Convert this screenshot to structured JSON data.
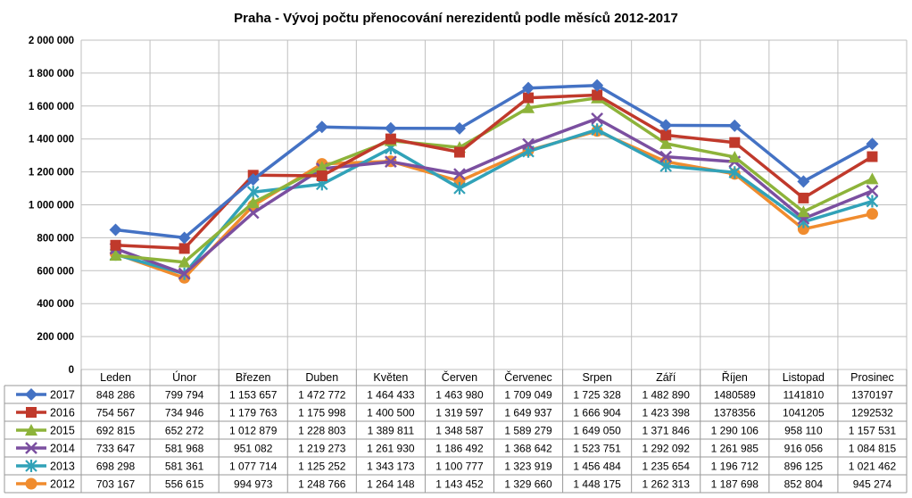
{
  "chart_data": {
    "type": "line",
    "title": "Praha - Vývoj počtu přenocování nerezidentů podle měsíců 2012-2017",
    "ylim": [
      0,
      2000000
    ],
    "yticks": [
      0,
      200000,
      400000,
      600000,
      800000,
      1000000,
      1200000,
      1400000,
      1600000,
      1800000,
      2000000
    ],
    "ytick_labels": [
      "0",
      "200 000",
      "400 000",
      "600 000",
      "800 000",
      "1 000 000",
      "1 200 000",
      "1 400 000",
      "1 600 000",
      "1 800 000",
      "2 000 000"
    ],
    "grid": true,
    "legend": "data-table-left",
    "categories": [
      "Leden",
      "Únor",
      "Březen",
      "Duben",
      "Květen",
      "Červen",
      "Červenec",
      "Srpen",
      "Září",
      "Říjen",
      "Listopad",
      "Prosinec"
    ],
    "series": [
      {
        "name": "2017",
        "color": "#4472C4",
        "marker": "diamond",
        "values": [
          848286,
          799794,
          1153657,
          1472772,
          1464433,
          1463980,
          1709049,
          1725328,
          1482890,
          1480589,
          1141810,
          1370197
        ],
        "labels": [
          "848 286",
          "799 794",
          "1 153 657",
          "1 472 772",
          "1 464 433",
          "1 463 980",
          "1 709 049",
          "1 725 328",
          "1 482 890",
          "1480589",
          "1141810",
          "1370197"
        ]
      },
      {
        "name": "2016",
        "color": "#C0392B",
        "marker": "square",
        "values": [
          754567,
          734946,
          1179763,
          1175998,
          1400500,
          1319597,
          1649937,
          1666904,
          1423398,
          1378356,
          1041205,
          1292532
        ],
        "labels": [
          "754 567",
          "734 946",
          "1 179 763",
          "1 175 998",
          "1 400 500",
          "1 319 597",
          "1 649 937",
          "1 666 904",
          "1 423 398",
          "1378356",
          "1041205",
          "1292532"
        ]
      },
      {
        "name": "2015",
        "color": "#8DB33A",
        "marker": "triangle",
        "values": [
          692815,
          652272,
          1012879,
          1228803,
          1389811,
          1348587,
          1589279,
          1649050,
          1371846,
          1290106,
          958110,
          1157531
        ],
        "labels": [
          "692 815",
          "652 272",
          "1 012 879",
          "1 228 803",
          "1 389 811",
          "1 348 587",
          "1 589 279",
          "1 649 050",
          "1 371 846",
          "1 290 106",
          "958 110",
          "1 157 531"
        ]
      },
      {
        "name": "2014",
        "color": "#7B4FA0",
        "marker": "x",
        "values": [
          733647,
          581968,
          951082,
          1219273,
          1261930,
          1186492,
          1368642,
          1523751,
          1292092,
          1261985,
          916056,
          1084815
        ],
        "labels": [
          "733 647",
          "581 968",
          "951 082",
          "1 219 273",
          "1 261 930",
          "1 186 492",
          "1 368 642",
          "1 523 751",
          "1 292 092",
          "1 261 985",
          "916 056",
          "1 084 815"
        ]
      },
      {
        "name": "2013",
        "color": "#31A2B8",
        "marker": "star",
        "values": [
          698298,
          581361,
          1077714,
          1125252,
          1343173,
          1100777,
          1323919,
          1456484,
          1235654,
          1196712,
          896125,
          1021462
        ],
        "labels": [
          "698 298",
          "581 361",
          "1 077 714",
          "1 125 252",
          "1 343 173",
          "1 100 777",
          "1 323 919",
          "1 456 484",
          "1 235 654",
          "1 196 712",
          "896 125",
          "1 021 462"
        ]
      },
      {
        "name": "2012",
        "color": "#F08C2E",
        "marker": "circle",
        "values": [
          703167,
          556615,
          994973,
          1248766,
          1264148,
          1143452,
          1329660,
          1448175,
          1262313,
          1187698,
          852804,
          945274
        ],
        "labels": [
          "703 167",
          "556 615",
          "994 973",
          "1 248 766",
          "1 264 148",
          "1 143 452",
          "1 329 660",
          "1 448 175",
          "1 262 313",
          "1 187 698",
          "852 804",
          "945 274"
        ]
      }
    ]
  }
}
